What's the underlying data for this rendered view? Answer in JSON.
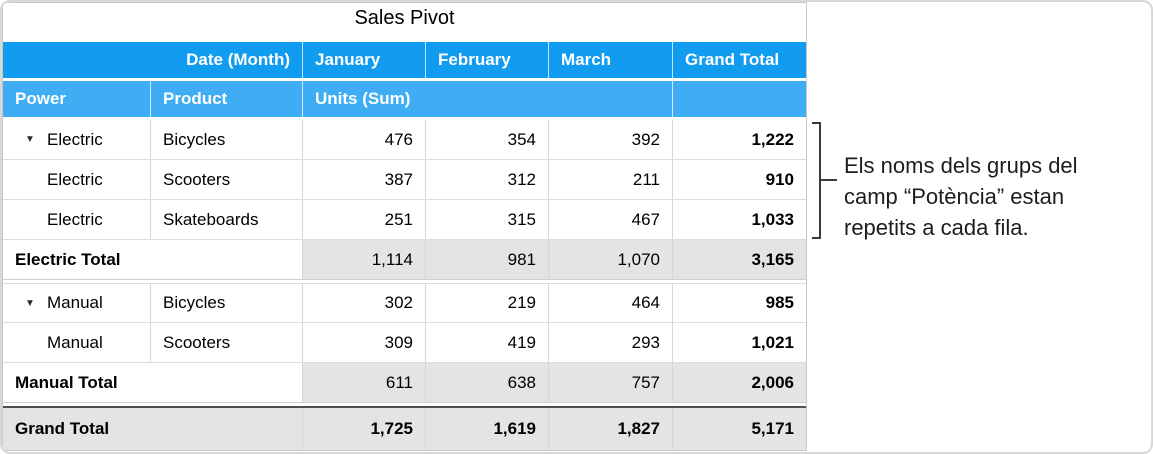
{
  "table": {
    "title": "Sales Pivot",
    "header": {
      "date_month": "Date (Month)",
      "months": [
        "January",
        "February",
        "March"
      ],
      "grand_total": "Grand Total",
      "power": "Power",
      "product": "Product",
      "units": "Units (Sum)"
    },
    "groups": [
      {
        "rows": [
          {
            "power": "Electric",
            "product": "Bicycles",
            "jan": "476",
            "feb": "354",
            "mar": "392",
            "total": "1,222"
          },
          {
            "power": "Electric",
            "product": "Scooters",
            "jan": "387",
            "feb": "312",
            "mar": "211",
            "total": "910"
          },
          {
            "power": "Electric",
            "product": "Skateboards",
            "jan": "251",
            "feb": "315",
            "mar": "467",
            "total": "1,033"
          }
        ],
        "total": {
          "label": "Electric Total",
          "jan": "1,114",
          "feb": "981",
          "mar": "1,070",
          "total": "3,165"
        }
      },
      {
        "rows": [
          {
            "power": "Manual",
            "product": "Bicycles",
            "jan": "302",
            "feb": "219",
            "mar": "464",
            "total": "985"
          },
          {
            "power": "Manual",
            "product": "Scooters",
            "jan": "309",
            "feb": "419",
            "mar": "293",
            "total": "1,021"
          }
        ],
        "total": {
          "label": "Manual Total",
          "jan": "611",
          "feb": "638",
          "mar": "757",
          "total": "2,006"
        }
      }
    ],
    "grand": {
      "label": "Grand Total",
      "jan": "1,725",
      "feb": "1,619",
      "mar": "1,827",
      "total": "5,171"
    }
  },
  "annotation": {
    "text": "Els noms dels grups del camp “Potència” estan repetits a cada fila."
  },
  "icons": {
    "disclosure_triangle": "▼"
  },
  "colors": {
    "header_blue": "#119cf0",
    "header_blue_light": "#3fadf4",
    "total_row_gray": "#e4e4e4"
  }
}
